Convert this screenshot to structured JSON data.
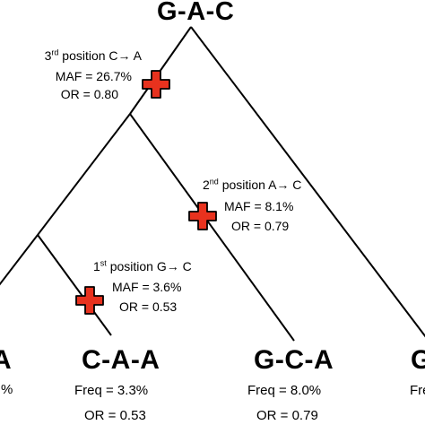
{
  "root": {
    "label": "G-A-C"
  },
  "mutations": [
    {
      "position_num": "3",
      "position_suffix": "rd",
      "position_text": " position C→ A",
      "maf": "MAF = 26.7%",
      "or": "OR = 0.80"
    },
    {
      "position_num": "2",
      "position_suffix": "nd",
      "position_text": " position A→ C",
      "maf": "MAF = 8.1%",
      "or": "OR = 0.79"
    },
    {
      "position_num": "1",
      "position_suffix": "st",
      "position_text": "  position G→ C",
      "maf": "MAF = 3.6%",
      "or": "OR = 0.53"
    }
  ],
  "haplotypes": [
    {
      "label": "A",
      "freq_partial": "%"
    },
    {
      "label": "C-A-A",
      "freq": "Freq = 3.3%",
      "or": "OR = 0.53"
    },
    {
      "label": "G-C-A",
      "freq": "Freq = 8.0%",
      "or": "OR = 0.79"
    },
    {
      "label": "G",
      "freq_partial": "Fre"
    }
  ],
  "colors": {
    "line": "#000000",
    "mutation_cross_fill": "#e8321e",
    "mutation_cross_stroke": "#000000"
  }
}
